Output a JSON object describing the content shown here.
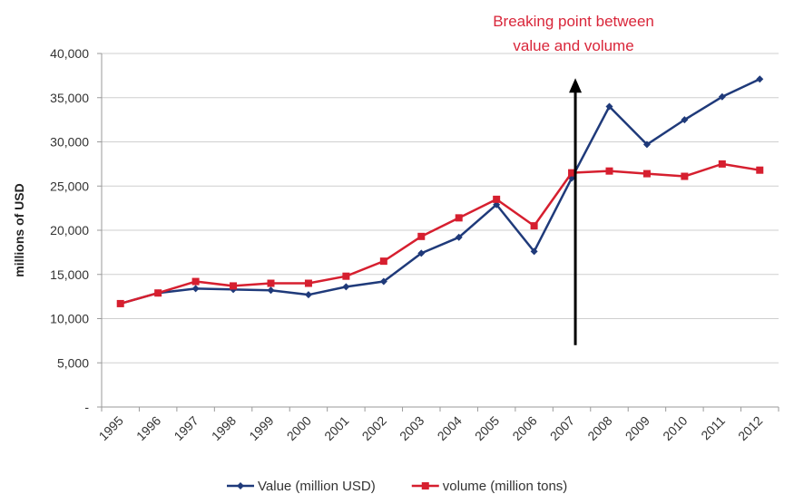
{
  "chart_data": {
    "type": "line",
    "x": [
      "1995",
      "1996",
      "1997",
      "1998",
      "1999",
      "2000",
      "2001",
      "2002",
      "2003",
      "2004",
      "2005",
      "2006",
      "2007",
      "2008",
      "2009",
      "2010",
      "2011",
      "2012"
    ],
    "series": [
      {
        "name": "Value (million USD)",
        "color": "#1f3a7a",
        "values": [
          11700,
          12900,
          13400,
          13300,
          13200,
          12700,
          13600,
          14200,
          17400,
          19200,
          22900,
          17600,
          25900,
          34000,
          29700,
          32500,
          35100,
          37100
        ]
      },
      {
        "name": "volume (million tons)",
        "color": "#d61f2f",
        "values": [
          11700,
          12900,
          14200,
          13700,
          14000,
          14000,
          14800,
          16500,
          19300,
          21400,
          23500,
          20500,
          26500,
          26700,
          26400,
          26100,
          27500,
          26800
        ]
      }
    ],
    "ylabel": "millions of USD",
    "ylim": [
      0,
      40000
    ],
    "yticks": [
      "-",
      "5,000",
      "10,000",
      "15,000",
      "20,000",
      "25,000",
      "30,000",
      "35,000",
      "40,000"
    ],
    "grid": true,
    "legend": "bottom",
    "annotation": {
      "lines": [
        "Breaking point between",
        "value and volume"
      ],
      "at_x": "2007",
      "arrow_from": 7000,
      "arrow_to": 37000,
      "color": "#d9263a"
    }
  }
}
